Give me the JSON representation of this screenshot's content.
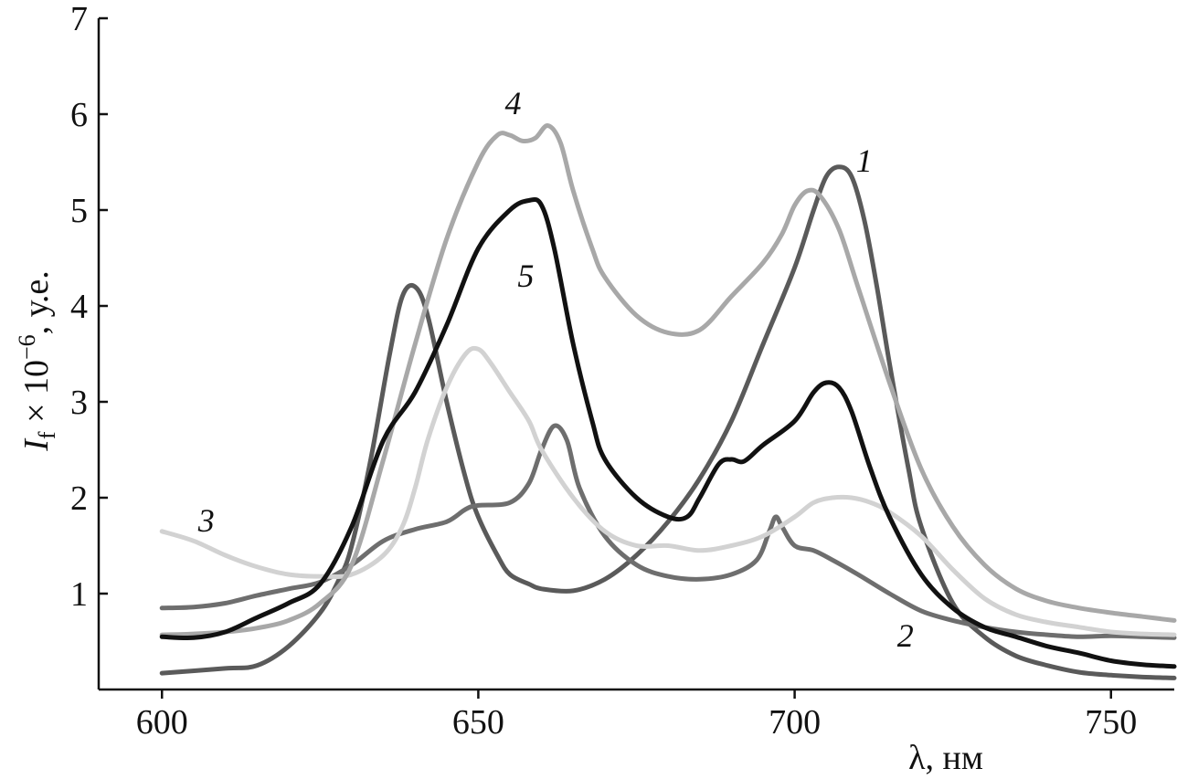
{
  "chart_data": {
    "type": "line",
    "xlabel": "λ, нм",
    "ylabel_main": "I",
    "ylabel_sub": "f",
    "ylabel_rest": " × 10",
    "ylabel_exp": "−6",
    "ylabel_tail": ", у.е.",
    "xlim": [
      590,
      760
    ],
    "ylim": [
      0,
      7
    ],
    "x_ticks": [
      "600",
      "650",
      "700",
      "750"
    ],
    "x_tick_values": [
      600,
      650,
      700,
      750
    ],
    "y_ticks": [
      "1",
      "2",
      "3",
      "4",
      "5",
      "6",
      "7"
    ],
    "y_tick_values": [
      1,
      2,
      3,
      4,
      5,
      6,
      7
    ],
    "grid": false,
    "series": [
      {
        "name": "1",
        "color": "#5a5a5a",
        "x": [
          600,
          610,
          615,
          620,
          625,
          628,
          630,
          633,
          636,
          638,
          640,
          642,
          645,
          648,
          650,
          653,
          655,
          658,
          660,
          665,
          670,
          675,
          680,
          685,
          690,
          695,
          700,
          703,
          705,
          707,
          709,
          711,
          713,
          715,
          718,
          720,
          725,
          730,
          735,
          740,
          745,
          750,
          755,
          760
        ],
        "y": [
          0.17,
          0.22,
          0.25,
          0.45,
          0.8,
          1.15,
          1.5,
          2.4,
          3.5,
          4.1,
          4.2,
          3.9,
          3.0,
          2.2,
          1.8,
          1.4,
          1.2,
          1.1,
          1.05,
          1.03,
          1.15,
          1.4,
          1.75,
          2.2,
          2.8,
          3.6,
          4.4,
          5.0,
          5.35,
          5.45,
          5.35,
          4.9,
          4.2,
          3.4,
          2.3,
          1.7,
          0.9,
          0.55,
          0.35,
          0.25,
          0.18,
          0.15,
          0.13,
          0.12
        ]
      },
      {
        "name": "2",
        "color": "#6e6e6e",
        "x": [
          600,
          605,
          610,
          615,
          620,
          625,
          630,
          635,
          640,
          645,
          648,
          650,
          655,
          658,
          660,
          662,
          664,
          666,
          670,
          675,
          680,
          685,
          690,
          694,
          696,
          697,
          698,
          700,
          703,
          706,
          710,
          715,
          720,
          725,
          730,
          735,
          740,
          745,
          750,
          755,
          760
        ],
        "y": [
          0.85,
          0.86,
          0.9,
          0.98,
          1.05,
          1.12,
          1.3,
          1.55,
          1.67,
          1.75,
          1.88,
          1.92,
          1.95,
          2.15,
          2.5,
          2.75,
          2.6,
          2.1,
          1.6,
          1.3,
          1.18,
          1.15,
          1.2,
          1.35,
          1.65,
          1.8,
          1.7,
          1.5,
          1.45,
          1.35,
          1.2,
          1.0,
          0.82,
          0.72,
          0.65,
          0.6,
          0.57,
          0.55,
          0.56,
          0.55,
          0.54
        ]
      },
      {
        "name": "3",
        "color": "#d2d2d2",
        "x": [
          600,
          605,
          610,
          615,
          620,
          625,
          630,
          635,
          638,
          640,
          642,
          645,
          648,
          650,
          652,
          655,
          658,
          660,
          665,
          670,
          675,
          680,
          685,
          690,
          695,
          700,
          703,
          706,
          709,
          712,
          715,
          720,
          725,
          730,
          735,
          740,
          745,
          750,
          755,
          760
        ],
        "y": [
          1.65,
          1.55,
          1.4,
          1.28,
          1.2,
          1.18,
          1.2,
          1.4,
          1.7,
          2.1,
          2.6,
          3.15,
          3.5,
          3.55,
          3.4,
          3.1,
          2.8,
          2.5,
          2.0,
          1.65,
          1.5,
          1.5,
          1.45,
          1.5,
          1.6,
          1.8,
          1.95,
          2.0,
          2.0,
          1.95,
          1.85,
          1.6,
          1.25,
          0.95,
          0.78,
          0.7,
          0.65,
          0.6,
          0.58,
          0.57
        ]
      },
      {
        "name": "4",
        "color": "#a8a8a8",
        "x": [
          600,
          605,
          610,
          615,
          620,
          625,
          630,
          635,
          640,
          645,
          650,
          653,
          655,
          657,
          659,
          661,
          663,
          665,
          668,
          670,
          675,
          680,
          685,
          690,
          695,
          698,
          700,
          702,
          704,
          707,
          710,
          715,
          720,
          725,
          730,
          735,
          740,
          745,
          750,
          755,
          760
        ],
        "y": [
          0.57,
          0.58,
          0.6,
          0.64,
          0.72,
          0.9,
          1.3,
          2.4,
          3.6,
          4.7,
          5.5,
          5.78,
          5.78,
          5.72,
          5.75,
          5.88,
          5.7,
          5.2,
          4.6,
          4.3,
          3.9,
          3.72,
          3.75,
          4.1,
          4.45,
          4.75,
          5.05,
          5.2,
          5.15,
          4.8,
          4.2,
          3.2,
          2.3,
          1.7,
          1.3,
          1.05,
          0.92,
          0.85,
          0.8,
          0.76,
          0.72
        ]
      },
      {
        "name": "5",
        "color": "#111111",
        "x": [
          600,
          605,
          610,
          615,
          620,
          625,
          630,
          635,
          640,
          645,
          650,
          655,
          658,
          660,
          662,
          665,
          668,
          670,
          675,
          680,
          683,
          685,
          688,
          690,
          692,
          695,
          700,
          703,
          705,
          707,
          709,
          712,
          715,
          720,
          725,
          730,
          735,
          740,
          745,
          750,
          755,
          760
        ],
        "y": [
          0.55,
          0.54,
          0.6,
          0.75,
          0.9,
          1.1,
          1.7,
          2.6,
          3.1,
          3.8,
          4.6,
          5.0,
          5.1,
          5.05,
          4.6,
          3.6,
          2.8,
          2.4,
          2.0,
          1.8,
          1.8,
          2.0,
          2.35,
          2.4,
          2.38,
          2.55,
          2.8,
          3.1,
          3.2,
          3.15,
          2.9,
          2.3,
          1.8,
          1.2,
          0.85,
          0.65,
          0.55,
          0.45,
          0.38,
          0.3,
          0.26,
          0.24
        ]
      }
    ],
    "series_labels": [
      {
        "text": "1",
        "at_x": 711,
        "at_y": 5.4
      },
      {
        "text": "2",
        "at_x": 717.5,
        "at_y": 0.45
      },
      {
        "text": "3",
        "at_x": 607,
        "at_y": 1.65
      },
      {
        "text": "4",
        "at_x": 655.5,
        "at_y": 6.0
      },
      {
        "text": "5",
        "at_x": 657.5,
        "at_y": 4.2
      }
    ]
  }
}
